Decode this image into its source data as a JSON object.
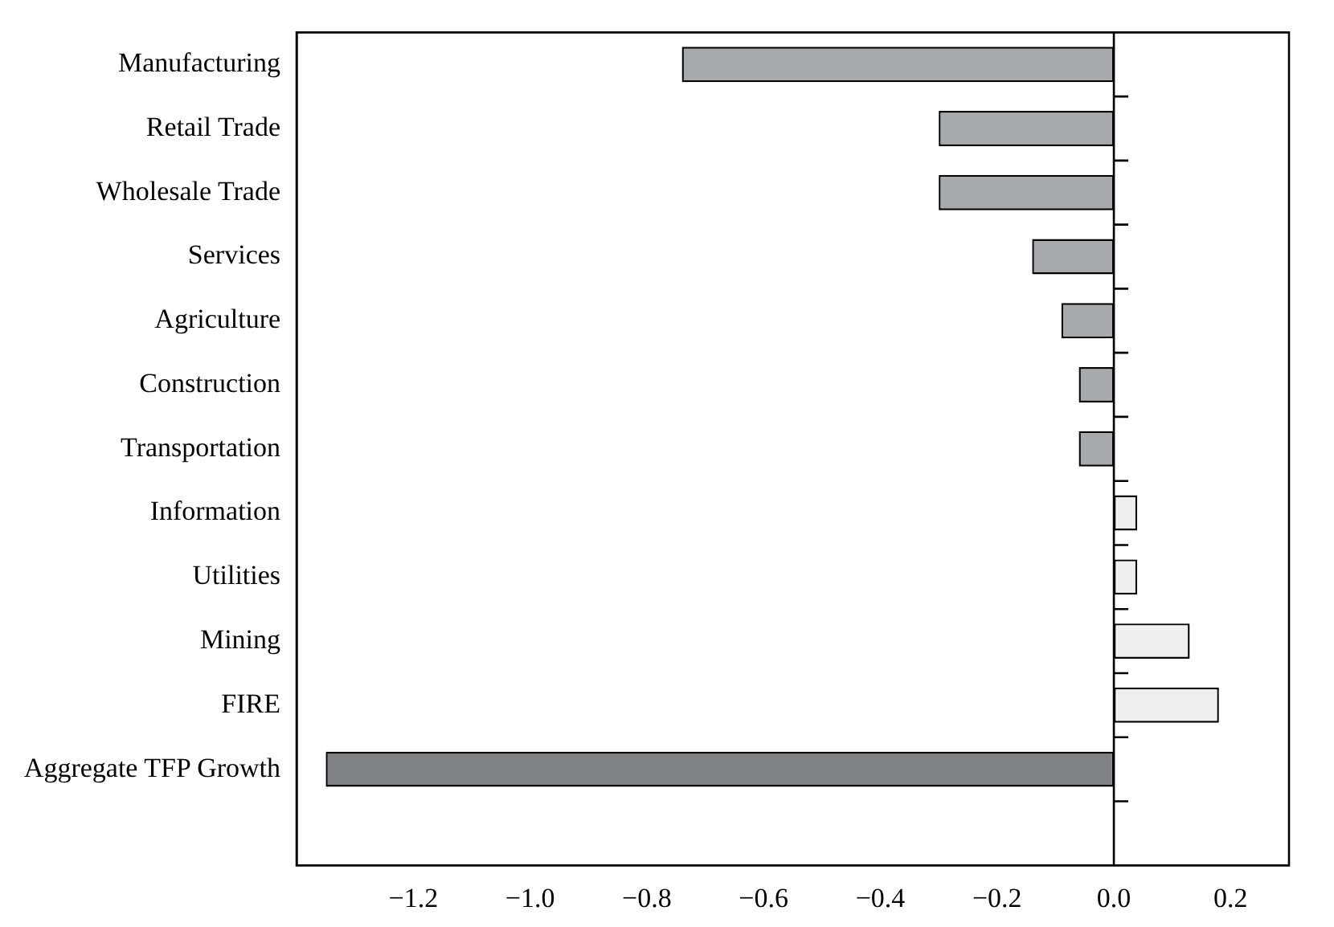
{
  "chart_data": {
    "type": "bar",
    "orientation": "horizontal",
    "categories": [
      "Manufacturing",
      "Retail Trade",
      "Wholesale Trade",
      "Services",
      "Agriculture",
      "Construction",
      "Transportation",
      "Information",
      "Utilities",
      "Mining",
      "FIRE",
      "Aggregate TFP Growth",
      null
    ],
    "values": [
      -0.74,
      -0.3,
      -0.3,
      -0.14,
      -0.09,
      -0.06,
      -0.06,
      0.04,
      0.04,
      0.13,
      0.18,
      -1.35,
      null
    ],
    "colors": [
      "#a8a9ad",
      "#a8a9ad",
      "#a8a9ad",
      "#a8a9ad",
      "#a8a9ad",
      "#a8a9ad",
      "#a8a9ad",
      "#efefef",
      "#efefef",
      "#efefef",
      "#efefef",
      "#808185",
      "#a8a9ad"
    ],
    "xlim": [
      -1.4,
      0.3
    ],
    "xticks": [
      {
        "value": -1.2,
        "label": "−1.2"
      },
      {
        "value": -1.0,
        "label": "−1.0"
      },
      {
        "value": -0.8,
        "label": "−0.8"
      },
      {
        "value": -0.6,
        "label": "−0.6"
      },
      {
        "value": -0.4,
        "label": "−0.4"
      },
      {
        "value": -0.2,
        "label": "−0.2"
      },
      {
        "value": 0,
        "label": "0.0"
      },
      {
        "value": 0.2,
        "label": "0.2"
      }
    ],
    "ref_lines": [
      {
        "axis": "x",
        "value": 0,
        "color": "#000000"
      }
    ],
    "grid": false,
    "legend": false
  }
}
